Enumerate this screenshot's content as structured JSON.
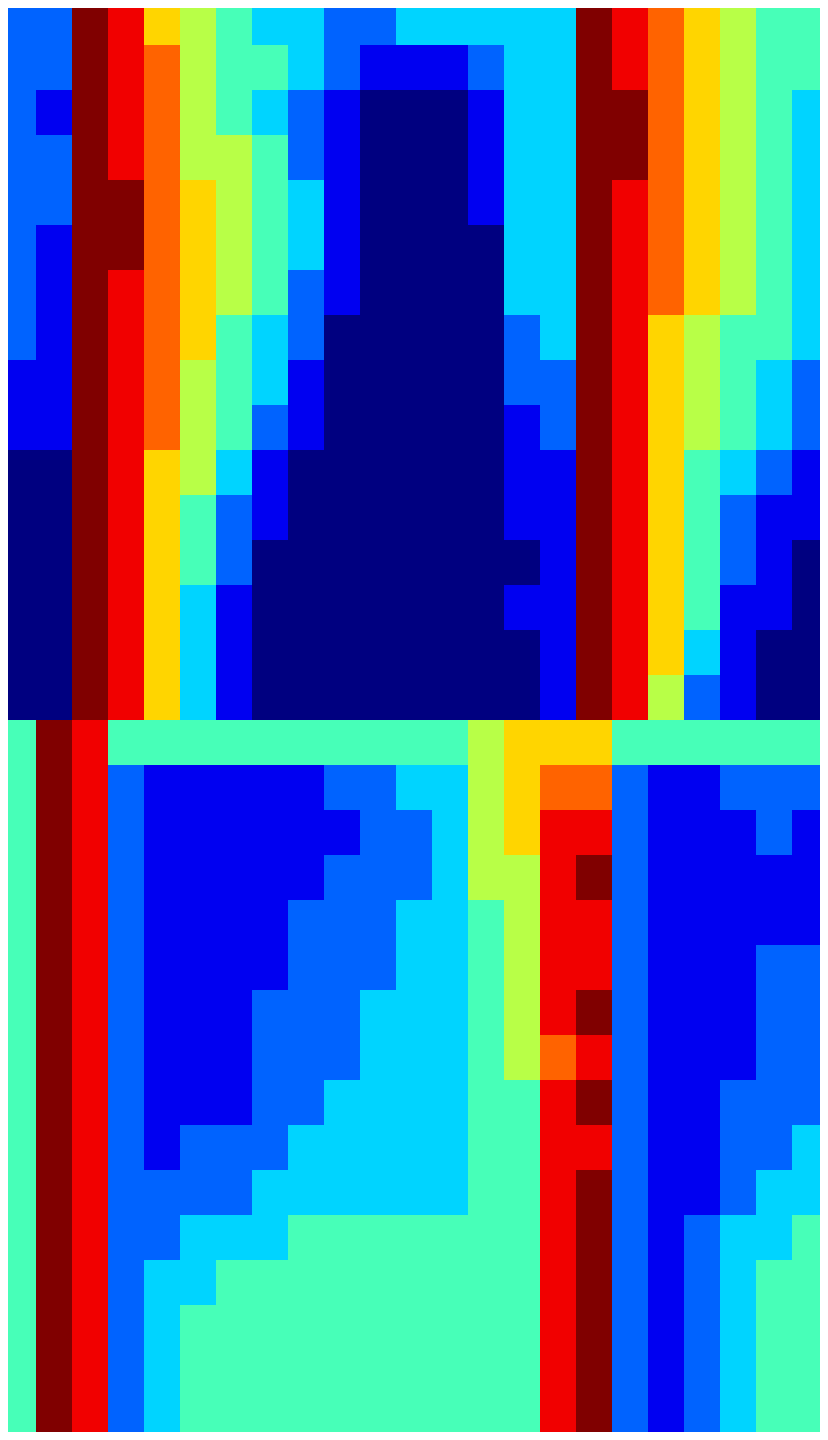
{
  "chart_data": {
    "type": "heatmap",
    "tick_labels": false,
    "xlim": [
      0,
      23
    ],
    "ylim": [
      0,
      32
    ],
    "value_range": [
      0,
      9
    ],
    "cells": [
      [
        2,
        2,
        9,
        8,
        6,
        5,
        4,
        3,
        3,
        2,
        2,
        3,
        3,
        3,
        3,
        3,
        9,
        8,
        7,
        6,
        5,
        4,
        4
      ],
      [
        2,
        2,
        9,
        8,
        7,
        5,
        4,
        4,
        3,
        2,
        1,
        1,
        1,
        2,
        3,
        3,
        9,
        8,
        7,
        6,
        5,
        4,
        4
      ],
      [
        2,
        1,
        9,
        8,
        7,
        5,
        4,
        3,
        2,
        1,
        0,
        0,
        0,
        1,
        3,
        3,
        9,
        9,
        7,
        6,
        5,
        4,
        3
      ],
      [
        2,
        2,
        9,
        8,
        7,
        5,
        5,
        4,
        2,
        1,
        0,
        0,
        0,
        1,
        3,
        3,
        9,
        9,
        7,
        6,
        5,
        4,
        3
      ],
      [
        2,
        2,
        9,
        9,
        7,
        6,
        5,
        4,
        3,
        1,
        0,
        0,
        0,
        1,
        3,
        3,
        9,
        8,
        7,
        6,
        5,
        4,
        3
      ],
      [
        2,
        1,
        9,
        9,
        7,
        6,
        5,
        4,
        3,
        1,
        0,
        0,
        0,
        0,
        3,
        3,
        9,
        8,
        7,
        6,
        5,
        4,
        3
      ],
      [
        2,
        1,
        9,
        8,
        7,
        6,
        5,
        4,
        2,
        1,
        0,
        0,
        0,
        0,
        3,
        3,
        9,
        8,
        7,
        6,
        5,
        4,
        3
      ],
      [
        2,
        1,
        9,
        8,
        7,
        6,
        4,
        3,
        2,
        0,
        0,
        0,
        0,
        0,
        2,
        3,
        9,
        8,
        6,
        5,
        4,
        4,
        3
      ],
      [
        1,
        1,
        9,
        8,
        7,
        5,
        4,
        3,
        1,
        0,
        0,
        0,
        0,
        0,
        2,
        2,
        9,
        8,
        6,
        5,
        4,
        3,
        2
      ],
      [
        1,
        1,
        9,
        8,
        7,
        5,
        4,
        2,
        1,
        0,
        0,
        0,
        0,
        0,
        1,
        2,
        9,
        8,
        6,
        5,
        4,
        3,
        2
      ],
      [
        0,
        0,
        9,
        8,
        6,
        5,
        3,
        1,
        0,
        0,
        0,
        0,
        0,
        0,
        1,
        1,
        9,
        8,
        6,
        4,
        3,
        2,
        1
      ],
      [
        0,
        0,
        9,
        8,
        6,
        4,
        2,
        1,
        0,
        0,
        0,
        0,
        0,
        0,
        1,
        1,
        9,
        8,
        6,
        4,
        2,
        1,
        1
      ],
      [
        0,
        0,
        9,
        8,
        6,
        4,
        2,
        0,
        0,
        0,
        0,
        0,
        0,
        0,
        0,
        1,
        9,
        8,
        6,
        4,
        2,
        1,
        0
      ],
      [
        0,
        0,
        9,
        8,
        6,
        3,
        1,
        0,
        0,
        0,
        0,
        0,
        0,
        0,
        1,
        1,
        9,
        8,
        6,
        4,
        1,
        1,
        0
      ],
      [
        0,
        0,
        9,
        8,
        6,
        3,
        1,
        0,
        0,
        0,
        0,
        0,
        0,
        0,
        0,
        1,
        9,
        8,
        6,
        3,
        1,
        0,
        0
      ],
      [
        0,
        0,
        9,
        8,
        6,
        3,
        1,
        0,
        0,
        0,
        0,
        0,
        0,
        0,
        0,
        1,
        9,
        8,
        5,
        2,
        1,
        0,
        0
      ],
      [
        4,
        9,
        8,
        4,
        4,
        4,
        4,
        4,
        4,
        4,
        4,
        4,
        4,
        5,
        6,
        6,
        6,
        4,
        4,
        4,
        4,
        4,
        4
      ],
      [
        4,
        9,
        8,
        2,
        1,
        1,
        1,
        1,
        1,
        2,
        2,
        3,
        3,
        5,
        6,
        7,
        7,
        2,
        1,
        1,
        2,
        2,
        2
      ],
      [
        4,
        9,
        8,
        2,
        1,
        1,
        1,
        1,
        1,
        1,
        2,
        2,
        3,
        5,
        6,
        8,
        8,
        2,
        1,
        1,
        1,
        2,
        1
      ],
      [
        4,
        9,
        8,
        2,
        1,
        1,
        1,
        1,
        1,
        2,
        2,
        2,
        3,
        5,
        5,
        8,
        9,
        2,
        1,
        1,
        1,
        1,
        1
      ],
      [
        4,
        9,
        8,
        2,
        1,
        1,
        1,
        1,
        2,
        2,
        2,
        3,
        3,
        4,
        5,
        8,
        8,
        2,
        1,
        1,
        1,
        1,
        1
      ],
      [
        4,
        9,
        8,
        2,
        1,
        1,
        1,
        1,
        2,
        2,
        2,
        3,
        3,
        4,
        5,
        8,
        8,
        2,
        1,
        1,
        1,
        2,
        2
      ],
      [
        4,
        9,
        8,
        2,
        1,
        1,
        1,
        2,
        2,
        2,
        3,
        3,
        3,
        4,
        5,
        8,
        9,
        2,
        1,
        1,
        1,
        2,
        2
      ],
      [
        4,
        9,
        8,
        2,
        1,
        1,
        1,
        2,
        2,
        2,
        3,
        3,
        3,
        4,
        5,
        7,
        8,
        2,
        1,
        1,
        1,
        2,
        2
      ],
      [
        4,
        9,
        8,
        2,
        1,
        1,
        1,
        2,
        2,
        3,
        3,
        3,
        3,
        4,
        4,
        8,
        9,
        2,
        1,
        1,
        2,
        2,
        2
      ],
      [
        4,
        9,
        8,
        2,
        1,
        2,
        2,
        2,
        3,
        3,
        3,
        3,
        3,
        4,
        4,
        8,
        8,
        2,
        1,
        1,
        2,
        2,
        3
      ],
      [
        4,
        9,
        8,
        2,
        2,
        2,
        2,
        3,
        3,
        3,
        3,
        3,
        3,
        4,
        4,
        8,
        9,
        2,
        1,
        1,
        2,
        3,
        3
      ],
      [
        4,
        9,
        8,
        2,
        2,
        3,
        3,
        3,
        4,
        4,
        4,
        4,
        4,
        4,
        4,
        8,
        9,
        2,
        1,
        2,
        3,
        3,
        4
      ],
      [
        4,
        9,
        8,
        2,
        3,
        3,
        4,
        4,
        4,
        4,
        4,
        4,
        4,
        4,
        4,
        8,
        9,
        2,
        1,
        2,
        3,
        4,
        4
      ],
      [
        4,
        9,
        8,
        2,
        3,
        4,
        4,
        4,
        4,
        4,
        4,
        4,
        4,
        4,
        4,
        8,
        9,
        2,
        1,
        2,
        3,
        4,
        4
      ],
      [
        4,
        9,
        8,
        2,
        3,
        4,
        4,
        4,
        4,
        4,
        4,
        4,
        4,
        4,
        4,
        8,
        9,
        2,
        1,
        2,
        3,
        4,
        4
      ],
      [
        4,
        9,
        8,
        2,
        3,
        4,
        4,
        4,
        4,
        4,
        4,
        4,
        4,
        4,
        4,
        8,
        9,
        2,
        1,
        2,
        3,
        4,
        4
      ]
    ]
  }
}
